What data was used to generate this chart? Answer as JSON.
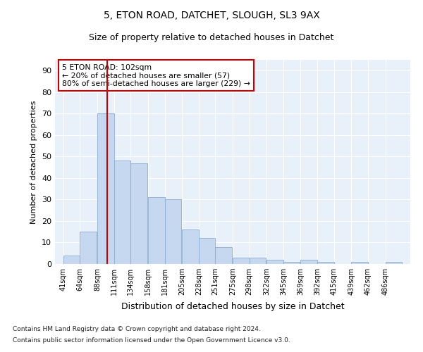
{
  "title1": "5, ETON ROAD, DATCHET, SLOUGH, SL3 9AX",
  "title2": "Size of property relative to detached houses in Datchet",
  "xlabel": "Distribution of detached houses by size in Datchet",
  "ylabel": "Number of detached properties",
  "bar_color": "#c5d8f0",
  "bar_edge_color": "#8aadd4",
  "background_color": "#e8f0fa",
  "grid_color": "#ffffff",
  "vline_x": 102,
  "vline_color": "#cc0000",
  "annotation_text": "5 ETON ROAD: 102sqm\n← 20% of detached houses are smaller (57)\n80% of semi-detached houses are larger (229) →",
  "annotation_box_color": "white",
  "annotation_border_color": "#cc0000",
  "bins": [
    41,
    64,
    88,
    111,
    134,
    158,
    181,
    205,
    228,
    251,
    275,
    298,
    322,
    345,
    369,
    392,
    415,
    439,
    462,
    486,
    509
  ],
  "counts": [
    4,
    15,
    70,
    48,
    47,
    31,
    30,
    16,
    12,
    8,
    3,
    3,
    2,
    1,
    2,
    1,
    0,
    1,
    0,
    1
  ],
  "ylim": [
    0,
    95
  ],
  "yticks": [
    0,
    10,
    20,
    30,
    40,
    50,
    60,
    70,
    80,
    90
  ],
  "footer1": "Contains HM Land Registry data © Crown copyright and database right 2024.",
  "footer2": "Contains public sector information licensed under the Open Government Licence v3.0."
}
